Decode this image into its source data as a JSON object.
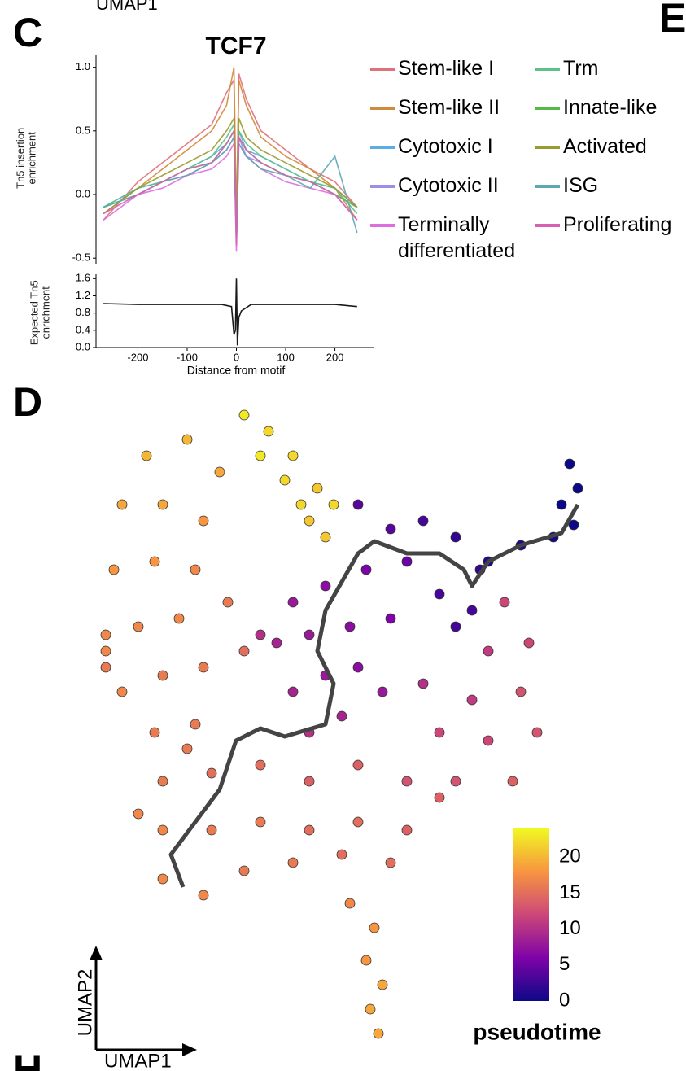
{
  "figure": {
    "top_label": "UMAP1",
    "panel_labels": [
      "C",
      "E",
      "D",
      "H"
    ]
  },
  "chart_data": [
    {
      "type": "line",
      "title": "TCF7",
      "ylabel": "Tn5 insertion enrichment",
      "x": [
        -270,
        -200,
        -150,
        -100,
        -50,
        -20,
        -5,
        0,
        5,
        20,
        50,
        100,
        150,
        200,
        245
      ],
      "xlim": [
        -285,
        280
      ],
      "ylim": [
        -0.55,
        1.1
      ],
      "yticks": [
        {
          "value": 1,
          "label": "1.0"
        },
        0.5,
        {
          "value": 0,
          "label": "0.0"
        },
        -0.5
      ],
      "series": [
        {
          "name": "Stem-like I",
          "color": "#e0707a",
          "values": [
            -0.2,
            0.1,
            0.25,
            0.4,
            0.55,
            0.8,
            0.9,
            -0.3,
            0.95,
            0.75,
            0.5,
            0.35,
            0.2,
            0.1,
            -0.1
          ]
        },
        {
          "name": "Stem-like II",
          "color": "#d08a3a",
          "values": [
            -0.15,
            0.05,
            0.2,
            0.35,
            0.5,
            0.7,
            1.0,
            -0.2,
            0.9,
            0.7,
            0.45,
            0.3,
            0.2,
            0.05,
            -0.2
          ]
        },
        {
          "name": "Cytotoxic I",
          "color": "#5aaee8",
          "values": [
            -0.1,
            0.05,
            0.1,
            0.2,
            0.3,
            0.4,
            0.5,
            -0.4,
            0.5,
            0.35,
            0.3,
            0.2,
            0.1,
            0.05,
            -0.1
          ]
        },
        {
          "name": "Cytotoxic II",
          "color": "#9a90e8",
          "values": [
            -0.1,
            0.0,
            0.1,
            0.15,
            0.25,
            0.35,
            0.45,
            -0.3,
            0.45,
            0.3,
            0.25,
            0.15,
            0.1,
            0.0,
            -0.1
          ]
        },
        {
          "name": "Terminally differentiated",
          "color": "#dd6ee0",
          "values": [
            -0.2,
            0.0,
            0.05,
            0.15,
            0.2,
            0.3,
            0.4,
            -0.45,
            0.4,
            0.3,
            0.2,
            0.1,
            0.05,
            0.0,
            -0.2
          ]
        },
        {
          "name": "Trm",
          "color": "#5cc08a",
          "values": [
            -0.1,
            0.05,
            0.1,
            0.2,
            0.3,
            0.45,
            0.55,
            -0.3,
            0.5,
            0.4,
            0.3,
            0.2,
            0.1,
            0.05,
            -0.15
          ]
        },
        {
          "name": "Innate-like",
          "color": "#58b848",
          "values": [
            -0.1,
            0.0,
            0.1,
            0.2,
            0.25,
            0.4,
            0.5,
            -0.35,
            0.45,
            0.35,
            0.25,
            0.15,
            0.1,
            0.0,
            -0.1
          ]
        },
        {
          "name": "Activated",
          "color": "#9a9a30",
          "values": [
            -0.15,
            0.05,
            0.15,
            0.25,
            0.35,
            0.5,
            0.6,
            -0.3,
            0.6,
            0.45,
            0.35,
            0.25,
            0.15,
            0.05,
            -0.1
          ]
        },
        {
          "name": "ISG",
          "color": "#5aaab0",
          "values": [
            -0.1,
            0.0,
            0.1,
            0.15,
            0.25,
            0.35,
            0.45,
            -0.35,
            0.4,
            0.3,
            0.2,
            0.15,
            0.05,
            0.3,
            -0.3
          ]
        },
        {
          "name": "Proliferating",
          "color": "#d860b0",
          "values": [
            -0.15,
            0.0,
            0.1,
            0.2,
            0.25,
            0.4,
            0.5,
            -0.4,
            0.45,
            0.35,
            0.25,
            0.15,
            0.1,
            0.0,
            -0.2
          ]
        }
      ]
    },
    {
      "type": "line",
      "ylabel": "Expected Tn5 enrichment",
      "xlabel": "Distance from motif",
      "x": [
        -270,
        -200,
        -100,
        -30,
        -10,
        -5,
        -2,
        0,
        2,
        5,
        10,
        30,
        100,
        200,
        245
      ],
      "xlim": [
        -285,
        280
      ],
      "ylim": [
        0,
        1.7
      ],
      "xticks": [
        -200,
        -100,
        0,
        100,
        200
      ],
      "yticks": [
        1.6,
        1.2,
        0.8,
        0.4,
        {
          "value": 0,
          "label": "0.0"
        }
      ],
      "series": [
        {
          "color": "#000000",
          "values": [
            1.02,
            1.0,
            1.0,
            1.0,
            0.95,
            0.3,
            0.4,
            1.6,
            0.05,
            0.7,
            0.85,
            1.0,
            1.0,
            1.0,
            0.95
          ]
        }
      ]
    },
    {
      "type": "scatter",
      "xlabel": "UMAP1",
      "ylabel": "UMAP2",
      "xlim": [
        0,
        620
      ],
      "ylim": [
        0,
        800
      ],
      "x": [
        190,
        220,
        250,
        280,
        270,
        300,
        240,
        210,
        290,
        260,
        70,
        120,
        160,
        40,
        90,
        140,
        30,
        80,
        130,
        20,
        60,
        110,
        170,
        40,
        90,
        140,
        190,
        20,
        330,
        370,
        410,
        250,
        290,
        340,
        390,
        230,
        270,
        320,
        370,
        250,
        290,
        330,
        270,
        310,
        360,
        210,
        450,
        480,
        430,
        470,
        450,
        490,
        590,
        600,
        580,
        595,
        570,
        530,
        510,
        540,
        490,
        530,
        470,
        550,
        490,
        410,
        430,
        520,
        450,
        390,
        80,
        130,
        90,
        150,
        210,
        270,
        330,
        90,
        150,
        210,
        270,
        330,
        390,
        430,
        90,
        140,
        190,
        250,
        310,
        370,
        120,
        60,
        20,
        320,
        350,
        340,
        360,
        345,
        355
      ],
      "y": [
        780,
        760,
        730,
        690,
        650,
        670,
        700,
        730,
        630,
        670,
        730,
        750,
        710,
        670,
        670,
        650,
        590,
        600,
        590,
        510,
        520,
        530,
        550,
        440,
        460,
        470,
        490,
        490,
        670,
        640,
        650,
        550,
        570,
        590,
        600,
        500,
        510,
        520,
        530,
        440,
        460,
        470,
        390,
        410,
        440,
        510,
        630,
        590,
        560,
        540,
        520,
        600,
        720,
        690,
        670,
        645,
        630,
        620,
        550,
        500,
        490,
        440,
        430,
        390,
        380,
        450,
        390,
        330,
        330,
        330,
        390,
        400,
        330,
        340,
        350,
        330,
        350,
        270,
        270,
        280,
        270,
        280,
        270,
        310,
        210,
        190,
        220,
        230,
        240,
        230,
        370,
        290,
        470,
        180,
        150,
        110,
        80,
        50,
        20
      ],
      "pseudotime": [
        23,
        22,
        22,
        21,
        21,
        22,
        22,
        23,
        21,
        22,
        20,
        20,
        19,
        19,
        19,
        18,
        18,
        18,
        17,
        17,
        17,
        17,
        16,
        17,
        16,
        16,
        15,
        17,
        4,
        4,
        3,
        8,
        7,
        6,
        5,
        9,
        8,
        7,
        6,
        9,
        8,
        7,
        10,
        9,
        8,
        10,
        2,
        2,
        3,
        3,
        3,
        1,
        0,
        0,
        0,
        0,
        0.5,
        1,
        12,
        12,
        11,
        13,
        11,
        13,
        12,
        10,
        12,
        14,
        13,
        13,
        16,
        16,
        16,
        15,
        15,
        14,
        14,
        17,
        16,
        16,
        15,
        15,
        14,
        14,
        17,
        17,
        16,
        16,
        15,
        15,
        16,
        17,
        16,
        17,
        18,
        18,
        19,
        19,
        19
      ],
      "trajectory": {
        "x": [
          115,
          100,
          130,
          160,
          180,
          210,
          240,
          290,
          300,
          280,
          290,
          330,
          350,
          390,
          430,
          460,
          470,
          490,
          530,
          580,
          600
        ],
        "y": [
          200,
          240,
          280,
          320,
          380,
          395,
          385,
          400,
          450,
          490,
          540,
          610,
          625,
          610,
          610,
          590,
          570,
          600,
          620,
          635,
          670
        ]
      },
      "colorbar": {
        "label": "pseudotime",
        "lim": [
          0,
          24
        ],
        "ticks": [
          0,
          5,
          10,
          15,
          20
        ]
      }
    }
  ]
}
